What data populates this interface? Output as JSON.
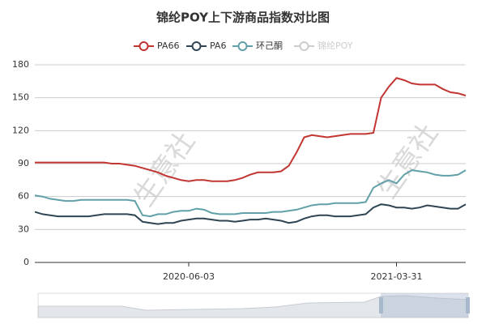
{
  "chart_data": {
    "type": "line",
    "title": "锦纶POY上下游商品指数对比图",
    "watermark": "生意社",
    "categories": [
      null,
      null,
      null,
      null,
      null,
      null,
      null,
      null,
      null,
      null,
      null,
      null,
      null,
      null,
      null,
      null,
      null,
      null,
      null,
      null,
      "2020-06-03",
      null,
      null,
      null,
      null,
      null,
      null,
      null,
      null,
      null,
      null,
      null,
      null,
      null,
      null,
      null,
      null,
      null,
      null,
      null,
      null,
      null,
      null,
      null,
      null,
      null,
      null,
      "2021-03-31",
      null,
      null,
      null,
      null,
      null,
      null,
      null,
      null,
      null
    ],
    "series": [
      {
        "name": "PA66",
        "color": "#c23531",
        "values": [
          91,
          91,
          91,
          91,
          91,
          91,
          91,
          91,
          91,
          91,
          90,
          90,
          89,
          88,
          86,
          84,
          82,
          79,
          77,
          75,
          74,
          75,
          75,
          74,
          74,
          74,
          75,
          77,
          80,
          82,
          82,
          82,
          83,
          88,
          100,
          114,
          116,
          115,
          114,
          115,
          116,
          117,
          117,
          117,
          118,
          150,
          160,
          168,
          166,
          163,
          162,
          162,
          162,
          158,
          155,
          154,
          152
        ]
      },
      {
        "name": "PA6",
        "color": "#2f4554",
        "values": [
          46,
          44,
          43,
          42,
          42,
          42,
          42,
          42,
          43,
          44,
          44,
          44,
          44,
          43,
          37,
          36,
          35,
          36,
          36,
          38,
          39,
          40,
          40,
          39,
          38,
          38,
          37,
          38,
          39,
          39,
          40,
          39,
          38,
          36,
          37,
          40,
          42,
          43,
          43,
          42,
          42,
          42,
          43,
          44,
          50,
          53,
          52,
          50,
          50,
          49,
          50,
          52,
          51,
          50,
          49,
          49,
          53
        ]
      },
      {
        "name": "环己酮",
        "color": "#61a0a8",
        "values": [
          61,
          60,
          58,
          57,
          56,
          56,
          57,
          57,
          57,
          57,
          57,
          57,
          57,
          56,
          43,
          42,
          44,
          44,
          46,
          47,
          47,
          49,
          48,
          45,
          44,
          44,
          44,
          45,
          45,
          45,
          45,
          46,
          46,
          47,
          48,
          50,
          52,
          53,
          53,
          54,
          54,
          54,
          54,
          55,
          68,
          72,
          75,
          72,
          80,
          84,
          83,
          82,
          80,
          79,
          79,
          80,
          84
        ]
      },
      {
        "name": "锦纶POY",
        "color": "#cccccc",
        "inactive": true,
        "values": [
          null,
          null,
          null,
          null,
          null,
          null,
          null,
          null,
          null,
          null,
          null,
          null,
          null,
          null,
          null,
          null,
          null,
          null,
          null,
          null,
          null,
          null,
          null,
          null,
          null,
          null,
          null,
          null,
          null,
          null,
          null,
          null,
          null,
          null,
          null,
          null,
          null,
          null,
          null,
          null,
          null,
          null,
          null,
          null,
          null,
          null,
          null,
          null,
          null,
          null,
          null,
          null,
          null,
          null,
          null,
          null,
          null
        ]
      }
    ],
    "ylim": [
      0,
      180
    ],
    "yticks": [
      0,
      30,
      60,
      90,
      120,
      150,
      180
    ],
    "grid": true
  }
}
